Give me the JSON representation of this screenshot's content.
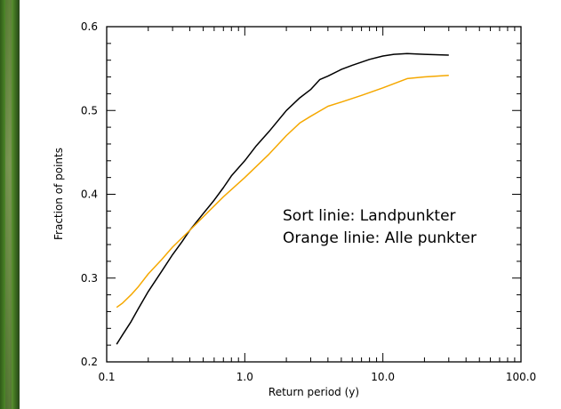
{
  "chart_data": {
    "type": "line",
    "xscale": "log",
    "xlim": [
      0.1,
      100.0
    ],
    "ylim": [
      0.2,
      0.6
    ],
    "xlabel": "Return period (y)",
    "ylabel": "Fraction of points",
    "x_tick_labels": [
      {
        "value": 0.1,
        "label": "0.1"
      },
      {
        "value": 1.0,
        "label": "1.0"
      },
      {
        "value": 10.0,
        "label": "10.0"
      },
      {
        "value": 100.0,
        "label": "100.0"
      }
    ],
    "y_tick_labels": [
      {
        "value": 0.2,
        "label": "0.2"
      },
      {
        "value": 0.3,
        "label": "0.3"
      },
      {
        "value": 0.4,
        "label": "0.4"
      },
      {
        "value": 0.5,
        "label": "0.5"
      },
      {
        "value": 0.6,
        "label": "0.6"
      }
    ],
    "annotations": [
      "Sort linie: Landpunkter",
      "Orange linie: Alle punkter"
    ],
    "grid": false,
    "series": [
      {
        "color": "#000000",
        "points": [
          [
            0.118,
            0.221
          ],
          [
            0.13,
            0.232
          ],
          [
            0.15,
            0.248
          ],
          [
            0.17,
            0.264
          ],
          [
            0.2,
            0.284
          ],
          [
            0.25,
            0.308
          ],
          [
            0.3,
            0.328
          ],
          [
            0.35,
            0.343
          ],
          [
            0.4,
            0.357
          ],
          [
            0.5,
            0.377
          ],
          [
            0.6,
            0.393
          ],
          [
            0.7,
            0.408
          ],
          [
            0.8,
            0.422
          ],
          [
            1.0,
            0.44
          ],
          [
            1.2,
            0.457
          ],
          [
            1.5,
            0.475
          ],
          [
            2.0,
            0.5
          ],
          [
            2.5,
            0.515
          ],
          [
            3.0,
            0.525
          ],
          [
            3.5,
            0.537
          ],
          [
            4.0,
            0.541
          ],
          [
            5.0,
            0.549
          ],
          [
            6.0,
            0.554
          ],
          [
            8.0,
            0.561
          ],
          [
            10.0,
            0.565
          ],
          [
            12.0,
            0.567
          ],
          [
            15.0,
            0.568
          ],
          [
            20.0,
            0.567
          ],
          [
            30.0,
            0.566
          ]
        ]
      },
      {
        "color": "#f5a800",
        "points": [
          [
            0.118,
            0.265
          ],
          [
            0.13,
            0.27
          ],
          [
            0.15,
            0.28
          ],
          [
            0.17,
            0.29
          ],
          [
            0.2,
            0.305
          ],
          [
            0.25,
            0.322
          ],
          [
            0.3,
            0.337
          ],
          [
            0.4,
            0.357
          ],
          [
            0.5,
            0.373
          ],
          [
            0.7,
            0.397
          ],
          [
            1.0,
            0.42
          ],
          [
            1.5,
            0.448
          ],
          [
            2.0,
            0.47
          ],
          [
            2.5,
            0.485
          ],
          [
            3.0,
            0.493
          ],
          [
            4.0,
            0.505
          ],
          [
            5.0,
            0.51
          ],
          [
            7.0,
            0.518
          ],
          [
            10.0,
            0.527
          ],
          [
            15.0,
            0.538
          ],
          [
            20.0,
            0.54
          ],
          [
            30.0,
            0.542
          ]
        ]
      }
    ]
  }
}
